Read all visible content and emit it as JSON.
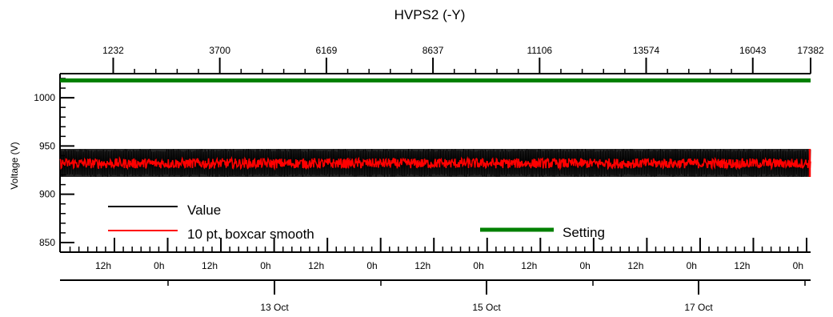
{
  "chart_data": {
    "type": "line",
    "title": "HVPS2 (-Y)",
    "xlabel": "",
    "ylabel": "Voltage (V)",
    "ylim": [
      840,
      1025
    ],
    "y_ticks": [
      850,
      900,
      950,
      1000
    ],
    "top_axis": {
      "range": [
        0,
        17382
      ],
      "labeled_ticks": [
        1232,
        3700,
        6169,
        8637,
        11106,
        13574,
        16043,
        17382
      ]
    },
    "time_axis": {
      "hour_labels": [
        "12h",
        "0h",
        "12h",
        "0h",
        "12h",
        "0h",
        "12h",
        "0h",
        "12h",
        "0h",
        "12h",
        "0h",
        "12h",
        "0h"
      ],
      "date_labels": [
        "13 Oct",
        "15 Oct",
        "17 Oct"
      ]
    },
    "series": [
      {
        "name": "Value",
        "color": "#000000",
        "band": [
          918,
          947
        ]
      },
      {
        "name": "10 pt. boxcar smooth",
        "color": "#ff0000",
        "mean": 932,
        "band": [
          926,
          939
        ]
      },
      {
        "name": "Setting",
        "color": "#008000",
        "values": [
          1018
        ]
      }
    ],
    "legend_placement": "bottom-left and bottom-center",
    "grid": false
  }
}
